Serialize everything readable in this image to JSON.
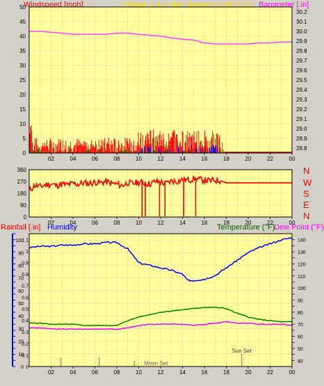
{
  "header": {
    "windspeed_label": "Windspeed [mph]",
    "title": "24 hour graph day    September 03 2023",
    "barometer_label": "Barometer [.in]"
  },
  "panel2": {
    "compass": [
      "N",
      "W",
      "S",
      "E",
      "N"
    ]
  },
  "panel3": {
    "rainfall_label": "Rainfall [.in]",
    "humidity_label": "Humidity",
    "temperature_label": "Temperature (°F)",
    "dewpoint_label": "Dew Point (°F)",
    "sunset_label": "Sun Set",
    "moonset_label": "Moon Set"
  },
  "colors": {
    "plot_bg": "#ffffa0",
    "grid": "#d8b8a0",
    "wind_gust": "#ff0000",
    "wind_avg": "#0000ff",
    "wind_green": "#008000",
    "barometer": "#ff40ff",
    "direction": "#ff0000",
    "humidity": "#0000ff",
    "temperature": "#008000",
    "dewpoint": "#ff00ff"
  },
  "chart_data": [
    {
      "type": "line",
      "name": "wind-barometer",
      "xticks": [
        "02",
        "04",
        "06",
        "08",
        "10",
        "12",
        "14",
        "16",
        "18",
        "20",
        "22",
        "00"
      ],
      "y_left_ticks": [
        0,
        5,
        10,
        15,
        20,
        25,
        30,
        35,
        40,
        45,
        50
      ],
      "y_right_ticks": [
        28.8,
        28.9,
        29,
        29.1,
        29.2,
        29.3,
        29.4,
        29.5,
        29.6,
        29.7,
        29.8,
        29.9,
        30,
        30.1,
        30.2
      ],
      "ylim_left": [
        0,
        50
      ],
      "ylim_right": [
        28.75,
        30.25
      ],
      "barometer": {
        "x": [
          0,
          1,
          2,
          3,
          4,
          5,
          6,
          7,
          8,
          9,
          10,
          11,
          12,
          13,
          14,
          15,
          16,
          17,
          18,
          19,
          20,
          21,
          22,
          23,
          24
        ],
        "values": [
          30.0,
          30.0,
          29.99,
          29.98,
          29.97,
          29.97,
          29.97,
          29.97,
          29.98,
          29.98,
          29.97,
          29.96,
          29.95,
          29.93,
          29.92,
          29.91,
          29.88,
          29.87,
          29.87,
          29.87,
          29.87,
          29.88,
          29.88,
          29.89,
          29.89
        ]
      },
      "wind_window_hours": [
        0,
        17.8
      ]
    },
    {
      "type": "line",
      "name": "wind-direction",
      "xticks": [
        "02",
        "04",
        "06",
        "08",
        "10",
        "12",
        "14",
        "16",
        "18",
        "20",
        "22",
        "00"
      ],
      "y_ticks": [
        0,
        90,
        180,
        270,
        360
      ],
      "ylim": [
        0,
        360
      ],
      "direction": {
        "x": [
          0,
          0.5,
          1,
          1.5,
          2,
          2.5,
          3,
          3.5,
          4,
          4.5,
          5,
          5.5,
          6,
          6.5,
          7,
          7.5,
          8,
          8.5,
          9,
          9.5,
          10,
          10.5,
          11,
          11.5,
          12,
          12.5,
          13,
          13.5,
          14,
          14.5,
          15,
          15.5,
          16,
          16.5,
          17,
          17.5,
          18,
          19,
          20,
          21,
          22,
          23,
          24
        ],
        "values": [
          200,
          240,
          230,
          245,
          250,
          240,
          250,
          245,
          255,
          250,
          260,
          255,
          265,
          260,
          270,
          255,
          250,
          240,
          260,
          255,
          265,
          260,
          250,
          270,
          265,
          255,
          275,
          270,
          285,
          280,
          290,
          285,
          280,
          275,
          280,
          275,
          260,
          260,
          260,
          260,
          260,
          260,
          260
        ]
      },
      "dropouts_hours": [
        10.3,
        10.6,
        11.9,
        12.4,
        14.1,
        15.2
      ]
    },
    {
      "type": "line",
      "name": "rain-humidity-temperature",
      "xticks": [
        "02",
        "04",
        "06",
        "08",
        "10",
        "12",
        "14",
        "16",
        "18",
        "20",
        "22",
        "00"
      ],
      "y_left_ticks": [
        0,
        0.1,
        0.2,
        0.3,
        0.4,
        0.5,
        0.6,
        0.7,
        0.8,
        0.9,
        1,
        1.1
      ],
      "y_humidity_ticks": [
        0,
        10,
        20,
        30,
        40,
        50,
        60,
        70,
        80,
        90,
        100
      ],
      "y_right_ticks": [
        40,
        50,
        60,
        70,
        80,
        90,
        100,
        110,
        120,
        130,
        140
      ],
      "ylim_left": [
        0,
        1.15
      ],
      "ylim_humidity": [
        0,
        105
      ],
      "ylim_right": [
        35,
        145
      ],
      "humidity": {
        "x": [
          0,
          1,
          2,
          3,
          4,
          5,
          6,
          7,
          8,
          9,
          10,
          11,
          12,
          13,
          14,
          14.5,
          15,
          16,
          17,
          18,
          19,
          20,
          21,
          22,
          23,
          24
        ],
        "values": [
          94,
          95,
          95,
          96,
          96,
          97,
          97,
          98,
          98,
          93,
          82,
          80,
          78,
          76,
          73,
          68,
          68,
          69,
          72,
          78,
          84,
          90,
          94,
          97,
          100,
          102
        ]
      },
      "temperature": {
        "x": [
          0,
          1,
          2,
          3,
          4,
          5,
          6,
          7,
          8,
          9,
          10,
          11,
          12,
          13,
          14,
          15,
          16,
          17,
          18,
          19,
          20,
          21,
          22,
          23,
          24
        ],
        "values": [
          71,
          71,
          70,
          70,
          70,
          69,
          69,
          69,
          69,
          73,
          76,
          78,
          80,
          81,
          82,
          83,
          84,
          84,
          83,
          79,
          76,
          74,
          73,
          72,
          72
        ]
      },
      "dewpoint": {
        "x": [
          0,
          1,
          2,
          3,
          4,
          5,
          6,
          7,
          8,
          9,
          10,
          11,
          12,
          13,
          14,
          15,
          16,
          17,
          18,
          19,
          20,
          21,
          22,
          23,
          24
        ],
        "values": [
          67,
          67,
          66,
          66,
          66,
          66,
          66,
          66,
          66,
          67,
          69,
          70,
          70,
          70,
          70,
          69,
          70,
          71,
          72,
          71,
          71,
          70,
          70,
          70,
          69
        ]
      },
      "sun_set_hour": 19.4,
      "moon_set_hour": 9.6,
      "event_marks_hours": [
        2.9,
        6.4
      ]
    }
  ]
}
